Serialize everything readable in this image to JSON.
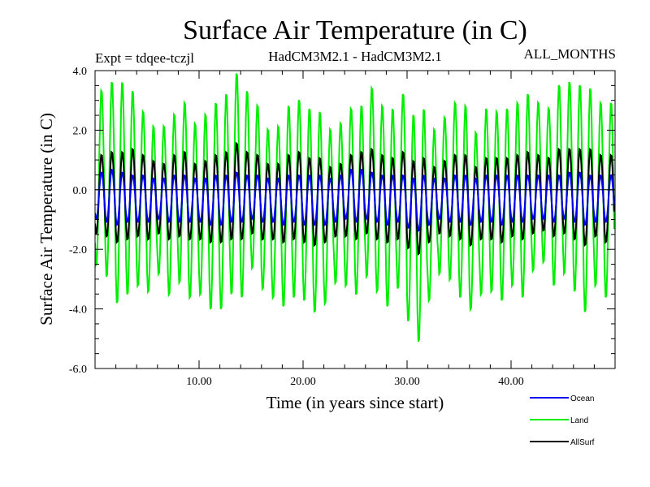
{
  "chart_data": {
    "type": "line",
    "title": "Surface Air Temperature (in C)",
    "subtitle_left": "Expt = tdqee-tczjl",
    "subtitle_center": "HadCM3M2.1 - HadCM3M2.1",
    "subtitle_right": "ALL_MONTHS",
    "xlabel": "Time (in years since start)",
    "ylabel": "Surface Air Temperature (in C)",
    "xlim": [
      0,
      50
    ],
    "ylim": [
      -6,
      4
    ],
    "xticks": [
      10,
      20,
      30,
      40
    ],
    "xtick_labels": [
      "10.00",
      "20.00",
      "30.00",
      "40.00"
    ],
    "yticks": [
      -6,
      -4,
      -2,
      0,
      2,
      4
    ],
    "ytick_labels": [
      "-6.0",
      "-4.0",
      "-2.0",
      "0.0",
      "2.0",
      "4.0"
    ],
    "zero_line": 0,
    "legend_position": "bottom-right",
    "cycles_per_year": 1,
    "series": [
      {
        "name": "Land",
        "color": "#00ee00",
        "annual_max": [
          3.4,
          3.7,
          3.7,
          3.4,
          2.7,
          2.2,
          2.2,
          2.6,
          3.0,
          2.3,
          2.6,
          3.0,
          3.3,
          4.0,
          3.4,
          2.9,
          2.1,
          2.2,
          2.9,
          3.1,
          2.8,
          2.7,
          2.1,
          2.3,
          2.8,
          2.9,
          3.5,
          2.9,
          2.8,
          3.3,
          2.6,
          2.8,
          2.1,
          2.5,
          3.0,
          2.9,
          2.0,
          2.8,
          2.7,
          2.8,
          3.0,
          3.3,
          3.0,
          2.8,
          3.6,
          3.7,
          3.6,
          3.5,
          3.0,
          3.0
        ],
        "annual_min": [
          -2.6,
          -3.0,
          -3.9,
          -3.6,
          -3.3,
          -3.5,
          -2.9,
          -3.6,
          -3.2,
          -3.7,
          -3.6,
          -4.1,
          -4.1,
          -3.6,
          -3.7,
          -2.7,
          -3.4,
          -3.7,
          -4.0,
          -3.7,
          -3.8,
          -4.2,
          -3.9,
          -3.2,
          -3.3,
          -3.6,
          -3.0,
          -3.5,
          -4.0,
          -3.4,
          -4.5,
          -5.2,
          -3.8,
          -2.9,
          -3.1,
          -3.7,
          -4.1,
          -3.6,
          -3.5,
          -3.8,
          -3.3,
          -3.7,
          -2.8,
          -2.5,
          -3.3,
          -2.9,
          -3.5,
          -4.2,
          -3.3,
          -3.7
        ]
      },
      {
        "name": "AllSurf",
        "color": "#000000",
        "annual_max": [
          1.2,
          1.3,
          1.3,
          1.4,
          1.2,
          1.0,
          0.9,
          1.2,
          1.3,
          0.9,
          1.0,
          1.2,
          1.3,
          1.6,
          1.3,
          1.2,
          0.9,
          0.9,
          1.2,
          1.3,
          1.1,
          1.1,
          0.8,
          0.9,
          1.2,
          1.3,
          1.4,
          1.2,
          1.1,
          1.3,
          1.0,
          1.1,
          0.8,
          1.0,
          1.2,
          1.2,
          0.8,
          1.1,
          1.1,
          1.1,
          1.2,
          1.3,
          1.2,
          1.1,
          1.4,
          1.4,
          1.4,
          1.4,
          1.2,
          1.2
        ],
        "annual_min": [
          -1.5,
          -1.6,
          -1.8,
          -1.7,
          -1.6,
          -1.7,
          -1.5,
          -1.7,
          -1.6,
          -1.7,
          -1.7,
          -1.8,
          -1.8,
          -1.7,
          -1.7,
          -1.5,
          -1.7,
          -1.7,
          -1.8,
          -1.7,
          -1.8,
          -1.9,
          -1.8,
          -1.6,
          -1.6,
          -1.7,
          -1.5,
          -1.7,
          -1.8,
          -1.7,
          -2.0,
          -2.2,
          -1.8,
          -1.5,
          -1.6,
          -1.7,
          -1.9,
          -1.7,
          -1.7,
          -1.8,
          -1.6,
          -1.7,
          -1.5,
          -1.4,
          -1.6,
          -1.5,
          -1.7,
          -1.9,
          -1.6,
          -1.8
        ]
      },
      {
        "name": "Ocean",
        "color": "#0000ee",
        "annual_max": [
          0.6,
          0.7,
          0.6,
          0.5,
          0.5,
          0.4,
          0.4,
          0.5,
          0.5,
          0.4,
          0.4,
          0.5,
          0.5,
          0.6,
          0.5,
          0.5,
          0.4,
          0.4,
          0.5,
          0.5,
          0.5,
          0.5,
          0.4,
          0.5,
          0.7,
          0.7,
          0.6,
          0.5,
          0.5,
          0.5,
          0.4,
          0.5,
          0.4,
          0.4,
          0.5,
          0.5,
          0.4,
          0.5,
          0.5,
          0.5,
          0.5,
          0.5,
          0.5,
          0.5,
          0.5,
          0.6,
          0.6,
          0.5,
          0.5,
          0.5
        ],
        "annual_min": [
          -1.0,
          -1.1,
          -1.2,
          -1.1,
          -1.1,
          -1.1,
          -1.0,
          -1.1,
          -1.1,
          -1.1,
          -1.1,
          -1.2,
          -1.2,
          -1.1,
          -1.1,
          -1.0,
          -1.1,
          -1.1,
          -1.2,
          -1.1,
          -1.2,
          -1.2,
          -1.2,
          -1.1,
          -1.0,
          -1.1,
          -1.0,
          -1.1,
          -1.2,
          -1.1,
          -1.3,
          -1.4,
          -1.2,
          -1.0,
          -1.1,
          -1.1,
          -1.2,
          -1.1,
          -1.1,
          -1.2,
          -1.1,
          -1.1,
          -1.0,
          -1.0,
          -1.1,
          -1.0,
          -1.1,
          -1.2,
          -1.1,
          -1.1
        ]
      }
    ],
    "legend_entries": [
      {
        "name": "Ocean",
        "color": "#0000ee"
      },
      {
        "name": "Land",
        "color": "#00ee00"
      },
      {
        "name": "AllSurf",
        "color": "#000000"
      }
    ]
  }
}
